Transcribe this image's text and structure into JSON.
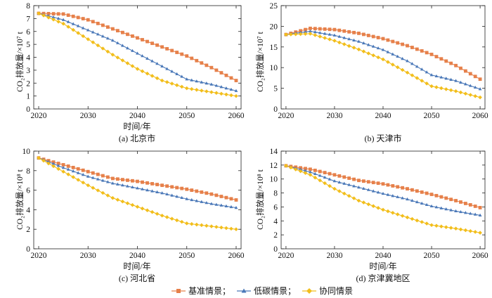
{
  "legend": [
    {
      "label": "基准情景；",
      "color": "#E6804A",
      "marker": "square"
    },
    {
      "label": "低碳情景；",
      "color": "#4A78B8",
      "marker": "triangle"
    },
    {
      "label": "协同情景",
      "color": "#F2BE1B",
      "marker": "diamond"
    }
  ],
  "chart_data": [
    {
      "type": "line",
      "caption": "(a) 北京市",
      "xlabel": "时间/年",
      "ylabel": "CO₂排放量/×10⁷ t",
      "xlim": [
        2019,
        2061
      ],
      "ylim": [
        0,
        8
      ],
      "xticks": [
        2020,
        2030,
        2040,
        2050,
        2060
      ],
      "yticks": [
        0,
        1,
        2,
        3,
        4,
        5,
        6,
        7,
        8
      ],
      "series": [
        {
          "name": "基准情景",
          "points": [
            [
              2020,
              7.4
            ],
            [
              2025,
              7.35
            ],
            [
              2030,
              6.9
            ],
            [
              2035,
              6.2
            ],
            [
              2040,
              5.5
            ],
            [
              2045,
              4.8
            ],
            [
              2050,
              4.1
            ],
            [
              2055,
              3.2
            ],
            [
              2060,
              2.2
            ]
          ]
        },
        {
          "name": "低碳情景",
          "points": [
            [
              2020,
              7.4
            ],
            [
              2025,
              6.9
            ],
            [
              2030,
              6.1
            ],
            [
              2035,
              5.3
            ],
            [
              2040,
              4.3
            ],
            [
              2045,
              3.3
            ],
            [
              2050,
              2.3
            ],
            [
              2055,
              1.9
            ],
            [
              2060,
              1.4
            ]
          ]
        },
        {
          "name": "协同情景",
          "points": [
            [
              2020,
              7.4
            ],
            [
              2025,
              6.6
            ],
            [
              2030,
              5.4
            ],
            [
              2035,
              4.2
            ],
            [
              2040,
              3.1
            ],
            [
              2045,
              2.2
            ],
            [
              2050,
              1.6
            ],
            [
              2055,
              1.3
            ],
            [
              2060,
              1.0
            ]
          ]
        }
      ]
    },
    {
      "type": "line",
      "caption": "(b) 天津市",
      "xlabel": "",
      "ylabel": "CO₂排放量/×10⁷ t",
      "xlim": [
        2019,
        2061
      ],
      "ylim": [
        0,
        25
      ],
      "xticks": [
        2020,
        2030,
        2040,
        2050,
        2060
      ],
      "yticks": [
        0,
        5,
        10,
        15,
        20,
        25
      ],
      "series": [
        {
          "name": "基准情景",
          "points": [
            [
              2020,
              18.0
            ],
            [
              2025,
              19.5
            ],
            [
              2030,
              19.2
            ],
            [
              2035,
              18.3
            ],
            [
              2040,
              17.0
            ],
            [
              2045,
              15.3
            ],
            [
              2050,
              13.2
            ],
            [
              2055,
              10.5
            ],
            [
              2060,
              7.2
            ]
          ]
        },
        {
          "name": "低碳情景",
          "points": [
            [
              2020,
              18.0
            ],
            [
              2025,
              18.8
            ],
            [
              2030,
              17.8
            ],
            [
              2035,
              16.3
            ],
            [
              2040,
              14.3
            ],
            [
              2045,
              11.6
            ],
            [
              2050,
              8.2
            ],
            [
              2055,
              6.8
            ],
            [
              2060,
              4.8
            ]
          ]
        },
        {
          "name": "协同情景",
          "points": [
            [
              2020,
              18.0
            ],
            [
              2025,
              18.2
            ],
            [
              2030,
              16.5
            ],
            [
              2035,
              14.4
            ],
            [
              2040,
              12.0
            ],
            [
              2045,
              8.8
            ],
            [
              2050,
              5.5
            ],
            [
              2055,
              4.3
            ],
            [
              2060,
              2.8
            ]
          ]
        }
      ]
    },
    {
      "type": "line",
      "caption": "(c) 河北省",
      "xlabel": "时间/年",
      "ylabel": "CO₂排放量/×10⁸ t",
      "xlim": [
        2019,
        2061
      ],
      "ylim": [
        0,
        10
      ],
      "xticks": [
        2020,
        2030,
        2040,
        2050,
        2060
      ],
      "yticks": [
        0,
        2,
        4,
        6,
        8,
        10
      ],
      "series": [
        {
          "name": "基准情景",
          "points": [
            [
              2020,
              9.3
            ],
            [
              2025,
              8.6
            ],
            [
              2030,
              7.9
            ],
            [
              2035,
              7.2
            ],
            [
              2040,
              6.9
            ],
            [
              2045,
              6.5
            ],
            [
              2050,
              6.1
            ],
            [
              2055,
              5.6
            ],
            [
              2060,
              5.0
            ]
          ]
        },
        {
          "name": "低碳情景",
          "points": [
            [
              2020,
              9.3
            ],
            [
              2025,
              8.3
            ],
            [
              2030,
              7.4
            ],
            [
              2035,
              6.7
            ],
            [
              2040,
              6.2
            ],
            [
              2045,
              5.7
            ],
            [
              2050,
              5.1
            ],
            [
              2055,
              4.6
            ],
            [
              2060,
              4.2
            ]
          ]
        },
        {
          "name": "协同情景",
          "points": [
            [
              2020,
              9.3
            ],
            [
              2025,
              7.9
            ],
            [
              2030,
              6.5
            ],
            [
              2035,
              5.2
            ],
            [
              2040,
              4.3
            ],
            [
              2045,
              3.4
            ],
            [
              2050,
              2.6
            ],
            [
              2055,
              2.3
            ],
            [
              2060,
              2.0
            ]
          ]
        }
      ]
    },
    {
      "type": "line",
      "caption": "(d) 京津冀地区",
      "xlabel": "时间/年",
      "ylabel": "CO₂排放量/×10⁸ t",
      "xlim": [
        2019,
        2061
      ],
      "ylim": [
        0,
        14
      ],
      "xticks": [
        2020,
        2030,
        2040,
        2050,
        2060
      ],
      "yticks": [
        0,
        2,
        4,
        6,
        8,
        10,
        12,
        14
      ],
      "series": [
        {
          "name": "基准情景",
          "points": [
            [
              2020,
              11.9
            ],
            [
              2025,
              11.4
            ],
            [
              2030,
              10.6
            ],
            [
              2035,
              9.8
            ],
            [
              2040,
              9.3
            ],
            [
              2045,
              8.6
            ],
            [
              2050,
              7.8
            ],
            [
              2055,
              6.9
            ],
            [
              2060,
              5.9
            ]
          ]
        },
        {
          "name": "低碳情景",
          "points": [
            [
              2020,
              11.9
            ],
            [
              2025,
              11.0
            ],
            [
              2030,
              9.7
            ],
            [
              2035,
              8.8
            ],
            [
              2040,
              7.9
            ],
            [
              2045,
              7.1
            ],
            [
              2050,
              6.1
            ],
            [
              2055,
              5.4
            ],
            [
              2060,
              4.8
            ]
          ]
        },
        {
          "name": "协同情景",
          "points": [
            [
              2020,
              11.9
            ],
            [
              2025,
              10.6
            ],
            [
              2030,
              8.6
            ],
            [
              2035,
              6.9
            ],
            [
              2040,
              5.6
            ],
            [
              2045,
              4.5
            ],
            [
              2050,
              3.4
            ],
            [
              2055,
              2.9
            ],
            [
              2060,
              2.3
            ]
          ]
        }
      ]
    }
  ]
}
